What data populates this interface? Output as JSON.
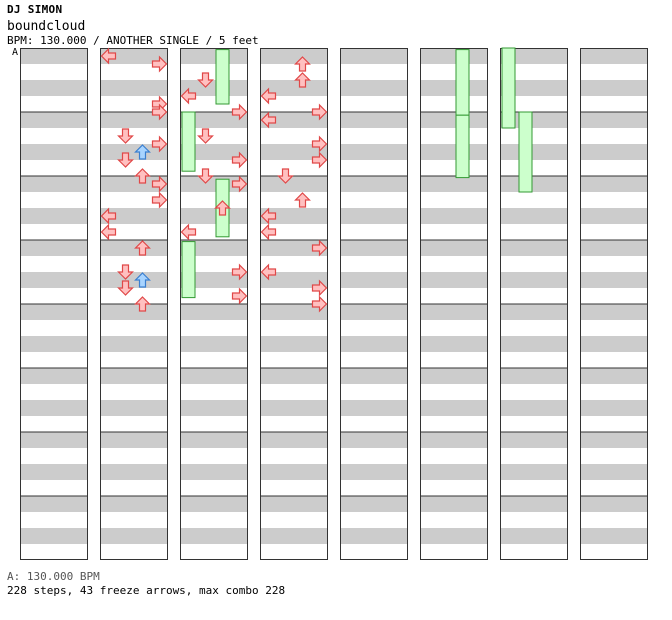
{
  "header": {
    "artist": "DJ SIMON",
    "title": "boundcloud",
    "info": "BPM: 130.000 / ANOTHER SINGLE / 5 feet"
  },
  "bpm_marker": "A",
  "footer": {
    "bpm_line": "A: 130.000 BPM",
    "stats": "228 steps, 43 freeze arrows, max combo 228"
  },
  "colors": {
    "stripe_gray": "#cccccc",
    "arrow_red_fill": "#ffc0c0",
    "arrow_red_stroke": "#e04848",
    "arrow_blue_fill": "#a8d4ff",
    "arrow_blue_stroke": "#3a7fd0",
    "freeze_fill": "#ccffcc",
    "freeze_stroke": "#339933",
    "frame_border": "#333333"
  },
  "chart_data": {
    "type": "step-chart",
    "columns": 8,
    "measures_per_column": 8,
    "beats_per_measure": 4,
    "lanes": [
      "left",
      "down",
      "up",
      "right"
    ],
    "notes": [
      [
        1,
        0,
        0,
        "left"
      ],
      [
        1,
        0,
        0.5,
        "right"
      ],
      [
        1,
        0,
        3,
        "right"
      ],
      [
        1,
        0,
        3.5,
        "right"
      ],
      [
        1,
        1,
        1,
        "down"
      ],
      [
        1,
        1,
        1.5,
        "right"
      ],
      [
        1,
        1,
        2.5,
        "down"
      ],
      [
        1,
        1,
        2,
        "up",
        "blue"
      ],
      [
        1,
        1,
        3.5,
        "up"
      ],
      [
        1,
        2,
        0,
        "right"
      ],
      [
        1,
        2,
        1,
        "right"
      ],
      [
        1,
        2,
        2,
        "left"
      ],
      [
        1,
        2,
        3,
        "left"
      ],
      [
        1,
        3,
        0,
        "up"
      ],
      [
        1,
        3,
        1.5,
        "down"
      ],
      [
        1,
        3,
        2.5,
        "down"
      ],
      [
        1,
        3,
        2,
        "up",
        "blue"
      ],
      [
        1,
        3,
        3.5,
        "up"
      ],
      [
        2,
        0,
        1.5,
        "down"
      ],
      [
        2,
        0,
        2.5,
        "left"
      ],
      [
        2,
        0,
        3.5,
        "right"
      ],
      [
        2,
        1,
        1,
        "down"
      ],
      [
        2,
        1,
        2.5,
        "right"
      ],
      [
        2,
        1,
        3.5,
        "down"
      ],
      [
        2,
        2,
        0,
        "right"
      ],
      [
        2,
        2,
        1.5,
        "up"
      ],
      [
        2,
        2,
        3,
        "left"
      ],
      [
        2,
        3,
        1.5,
        "right"
      ],
      [
        2,
        3,
        3,
        "right"
      ],
      [
        3,
        0,
        0.5,
        "up"
      ],
      [
        3,
        0,
        1.5,
        "up"
      ],
      [
        3,
        0,
        2.5,
        "left"
      ],
      [
        3,
        0,
        3.5,
        "right"
      ],
      [
        3,
        1,
        0,
        "left"
      ],
      [
        3,
        1,
        1.5,
        "right"
      ],
      [
        3,
        1,
        2.5,
        "right"
      ],
      [
        3,
        1,
        3.5,
        "down"
      ],
      [
        3,
        2,
        1,
        "up"
      ],
      [
        3,
        2,
        2,
        "left"
      ],
      [
        3,
        2,
        3,
        "left"
      ],
      [
        3,
        3,
        0,
        "right"
      ],
      [
        3,
        3,
        1.5,
        "left"
      ],
      [
        3,
        3,
        2.5,
        "right"
      ],
      [
        3,
        3,
        3.5,
        "right"
      ]
    ],
    "freezes": [
      [
        2,
        0,
        0.1,
        2.5,
        "up"
      ],
      [
        2,
        1,
        0.0,
        2.7,
        "left"
      ],
      [
        2,
        2,
        0.2,
        2.8,
        "up"
      ],
      [
        2,
        3,
        0.1,
        2.6,
        "left"
      ],
      [
        5,
        0,
        0.1,
        3.2,
        "up"
      ],
      [
        5,
        1,
        0.2,
        3.1,
        "up"
      ],
      [
        6,
        0,
        0.0,
        4.0,
        "left"
      ],
      [
        6,
        1,
        0.0,
        4.0,
        "down"
      ]
    ]
  }
}
